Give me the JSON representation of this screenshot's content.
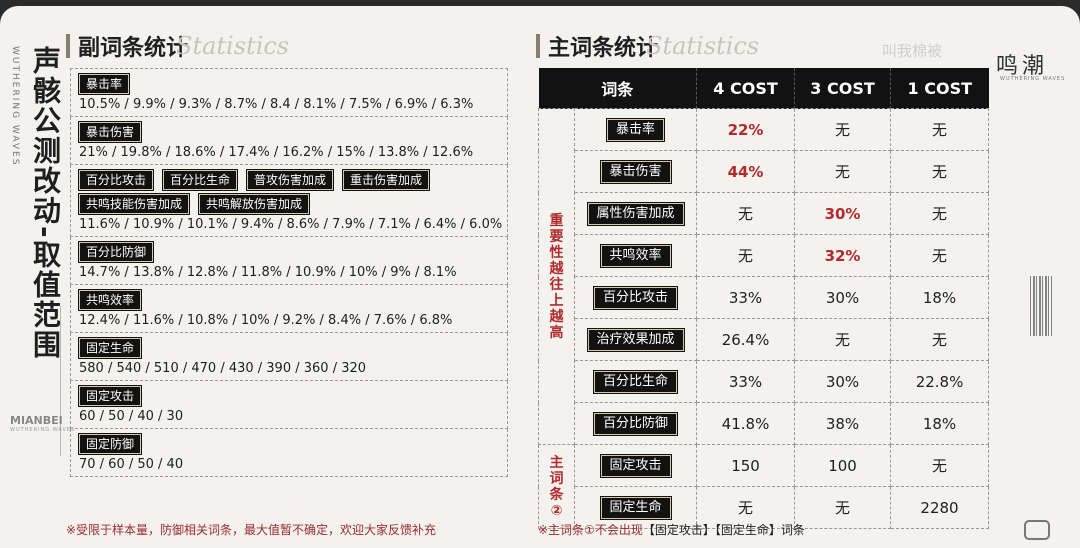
{
  "page_title": "声骸公测改动-取值范围",
  "vertical_sub": "WUTHERING WAVES",
  "brand": "MIANBEI",
  "brand_sub": "WUTHERING WAVES",
  "left_section": {
    "title": "副词条统计",
    "script": "Statistics"
  },
  "right_section": {
    "title": "主词条统计",
    "script": "Statistics"
  },
  "watermark": "叫我棉被",
  "logo": "鸣潮",
  "logo_sub": "WUTHERING WAVES",
  "sub_stats": [
    {
      "tags": [
        "暴击率"
      ],
      "values": "10.5% / 9.9% / 9.3% / 8.7% / 8.4 / 8.1% / 7.5% / 6.9% / 6.3%"
    },
    {
      "tags": [
        "暴击伤害"
      ],
      "values": "21% / 19.8% / 18.6% / 17.4% / 16.2% / 15% / 13.8% / 12.6%"
    },
    {
      "tags": [
        "百分比攻击",
        "百分比生命",
        "普攻伤害加成",
        "重击伤害加成",
        "共鸣技能伤害加成",
        "共鸣解放伤害加成"
      ],
      "values": "11.6% / 10.9% / 10.1% / 9.4% / 8.6% / 7.9% / 7.1% / 6.4% / 6.0%"
    },
    {
      "tags": [
        "百分比防御"
      ],
      "values": "14.7% / 13.8% / 12.8% / 11.8% / 10.9% / 10% / 9% / 8.1%"
    },
    {
      "tags": [
        "共鸣效率"
      ],
      "values": "12.4% / 11.6% / 10.8% / 10% / 9.2% / 8.4% / 7.6% / 6.8%"
    },
    {
      "tags": [
        "固定生命"
      ],
      "values": "580 / 540 / 510 / 470 / 430 / 390 / 360 / 320"
    },
    {
      "tags": [
        "固定攻击"
      ],
      "values": "60 / 50 / 40 / 30"
    },
    {
      "tags": [
        "固定防御"
      ],
      "values": "70 / 60 / 50 / 40"
    }
  ],
  "left_note": {
    "mark": "※受限于样本量，防御相关词条，最大值暂不确定，欢迎大家反馈补充"
  },
  "main_table": {
    "headers": [
      "词条",
      "4 COST",
      "3 COST",
      "1 COST"
    ],
    "group1_label": "重要性越往上越高",
    "group2_label": "主词条②",
    "rows": [
      {
        "stat": "暴击率",
        "c4": "22%",
        "c3": "无",
        "c1": "无",
        "red": [
          true,
          false,
          false
        ]
      },
      {
        "stat": "暴击伤害",
        "c4": "44%",
        "c3": "无",
        "c1": "无",
        "red": [
          true,
          false,
          false
        ]
      },
      {
        "stat": "属性伤害加成",
        "c4": "无",
        "c3": "30%",
        "c1": "无",
        "red": [
          false,
          true,
          false
        ]
      },
      {
        "stat": "共鸣效率",
        "c4": "无",
        "c3": "32%",
        "c1": "无",
        "red": [
          false,
          true,
          false
        ]
      },
      {
        "stat": "百分比攻击",
        "c4": "33%",
        "c3": "30%",
        "c1": "18%",
        "red": [
          false,
          false,
          false
        ]
      },
      {
        "stat": "治疗效果加成",
        "c4": "26.4%",
        "c3": "无",
        "c1": "无",
        "red": [
          false,
          false,
          false
        ]
      },
      {
        "stat": "百分比生命",
        "c4": "33%",
        "c3": "30%",
        "c1": "22.8%",
        "red": [
          false,
          false,
          false
        ]
      },
      {
        "stat": "百分比防御",
        "c4": "41.8%",
        "c3": "38%",
        "c1": "18%",
        "red": [
          false,
          false,
          false
        ]
      },
      {
        "stat": "固定攻击",
        "c4": "150",
        "c3": "100",
        "c1": "无",
        "red": [
          false,
          false,
          false
        ]
      },
      {
        "stat": "固定生命",
        "c4": "无",
        "c3": "无",
        "c1": "2280",
        "red": [
          false,
          false,
          false
        ]
      }
    ]
  },
  "right_note": {
    "mark": "※主词条①不会出现",
    "rest": "【固定攻击】【固定生命】词条"
  },
  "accent_red": "#b22a2a"
}
